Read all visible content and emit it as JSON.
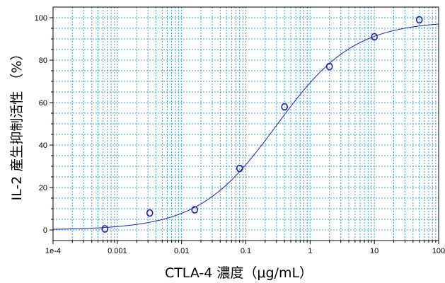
{
  "chart_data": {
    "type": "scatter",
    "xlabel": "CTLA-4 濃度（μg/mL）",
    "ylabel": "IL-2 産生抑制活性 （%）",
    "x_scale": "log",
    "xlim": [
      0.0001,
      100
    ],
    "ylim": [
      -5,
      105
    ],
    "x_ticks": [
      0.0001,
      0.001,
      0.01,
      0.1,
      1,
      10,
      100
    ],
    "x_tick_labels": [
      "1e-4",
      "0.001",
      "0.01",
      "0.1",
      "1",
      "10",
      "100"
    ],
    "y_ticks": [
      0,
      20,
      40,
      60,
      80,
      100
    ],
    "y_tick_labels": [
      "0",
      "20",
      "40",
      "60",
      "80",
      "100"
    ],
    "grid": true,
    "series": [
      {
        "points": [
          {
            "x": 0.00064,
            "y": 0.5
          },
          {
            "x": 0.0032,
            "y": 8
          },
          {
            "x": 0.016,
            "y": 9.5
          },
          {
            "x": 0.08,
            "y": 29
          },
          {
            "x": 0.4,
            "y": 58
          },
          {
            "x": 2,
            "y": 77
          },
          {
            "x": 10,
            "y": 91
          },
          {
            "x": 50,
            "y": 99
          }
        ],
        "fit": {
          "bottom": 0,
          "top": 98.5,
          "ec50": 0.3,
          "hill": 0.72,
          "kind": "logistic curve"
        }
      }
    ],
    "colors": {
      "grid": "#33a8cc",
      "series": "#1f1fb8",
      "axis": "#000000"
    }
  }
}
